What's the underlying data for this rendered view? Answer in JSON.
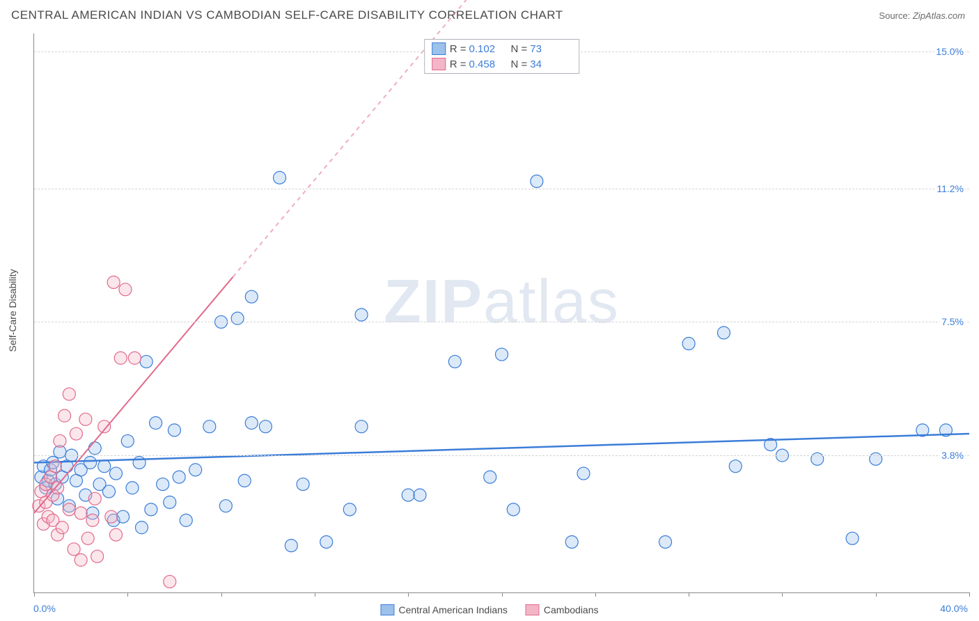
{
  "header": {
    "title": "CENTRAL AMERICAN INDIAN VS CAMBODIAN SELF-CARE DISABILITY CORRELATION CHART",
    "source_label": "Source:",
    "source_value": "ZipAtlas.com"
  },
  "watermark": {
    "part1": "ZIP",
    "part2": "atlas"
  },
  "chart": {
    "type": "scatter",
    "y_axis_title": "Self-Care Disability",
    "xlim": [
      0,
      40
    ],
    "ylim": [
      0,
      15.5
    ],
    "x_min_label": "0.0%",
    "x_max_label": "40.0%",
    "y_tick_values": [
      3.8,
      7.5,
      11.2,
      15.0
    ],
    "y_tick_labels": [
      "3.8%",
      "7.5%",
      "11.2%",
      "15.0%"
    ],
    "x_tick_values": [
      0,
      4,
      8,
      12,
      16,
      20,
      24,
      28,
      32,
      36,
      40
    ],
    "grid_color": "#d5d5d5",
    "background_color": "#ffffff",
    "marker_radius": 9,
    "marker_fill_opacity": 0.35,
    "marker_stroke_width": 1.2,
    "trend_line_width": 2,
    "series": [
      {
        "key": "cai",
        "label": "Central American Indians",
        "color_stroke": "#3b7dd8",
        "color_fill": "#9cc1ea",
        "R": "0.102",
        "N": "73",
        "trend": {
          "y_at_x0": 3.6,
          "y_at_xmax": 4.4,
          "dashed": false
        },
        "points": [
          [
            0.3,
            3.2
          ],
          [
            0.4,
            3.5
          ],
          [
            0.5,
            2.9
          ],
          [
            0.6,
            3.1
          ],
          [
            0.7,
            3.4
          ],
          [
            0.8,
            3.6
          ],
          [
            0.9,
            3.0
          ],
          [
            1.0,
            2.6
          ],
          [
            1.1,
            3.9
          ],
          [
            1.2,
            3.2
          ],
          [
            1.4,
            3.5
          ],
          [
            1.5,
            2.4
          ],
          [
            1.6,
            3.8
          ],
          [
            1.8,
            3.1
          ],
          [
            2.0,
            3.4
          ],
          [
            2.2,
            2.7
          ],
          [
            2.4,
            3.6
          ],
          [
            2.5,
            2.2
          ],
          [
            2.6,
            4.0
          ],
          [
            2.8,
            3.0
          ],
          [
            3.0,
            3.5
          ],
          [
            3.2,
            2.8
          ],
          [
            3.4,
            2.0
          ],
          [
            3.5,
            3.3
          ],
          [
            3.8,
            2.1
          ],
          [
            4.0,
            4.2
          ],
          [
            4.2,
            2.9
          ],
          [
            4.5,
            3.6
          ],
          [
            4.6,
            1.8
          ],
          [
            4.8,
            6.4
          ],
          [
            5.0,
            2.3
          ],
          [
            5.2,
            4.7
          ],
          [
            5.5,
            3.0
          ],
          [
            5.8,
            2.5
          ],
          [
            6.0,
            4.5
          ],
          [
            6.2,
            3.2
          ],
          [
            6.5,
            2.0
          ],
          [
            6.9,
            3.4
          ],
          [
            7.5,
            4.6
          ],
          [
            8.0,
            7.5
          ],
          [
            8.2,
            2.4
          ],
          [
            8.7,
            7.6
          ],
          [
            9.0,
            3.1
          ],
          [
            9.3,
            4.7
          ],
          [
            9.3,
            8.2
          ],
          [
            9.9,
            4.6
          ],
          [
            10.5,
            11.5
          ],
          [
            11.0,
            1.3
          ],
          [
            11.5,
            3.0
          ],
          [
            12.5,
            1.4
          ],
          [
            13.5,
            2.3
          ],
          [
            14.0,
            4.6
          ],
          [
            14.0,
            7.7
          ],
          [
            16.0,
            2.7
          ],
          [
            16.5,
            2.7
          ],
          [
            18.0,
            6.4
          ],
          [
            19.5,
            3.2
          ],
          [
            20.0,
            6.6
          ],
          [
            20.5,
            2.3
          ],
          [
            21.5,
            11.4
          ],
          [
            23.0,
            1.4
          ],
          [
            23.5,
            3.3
          ],
          [
            27.0,
            1.4
          ],
          [
            28.0,
            6.9
          ],
          [
            29.5,
            7.2
          ],
          [
            30.0,
            3.5
          ],
          [
            31.5,
            4.1
          ],
          [
            32.0,
            3.8
          ],
          [
            33.5,
            3.7
          ],
          [
            36.0,
            3.7
          ],
          [
            38.0,
            4.5
          ],
          [
            39.0,
            4.5
          ],
          [
            35.0,
            1.5
          ]
        ]
      },
      {
        "key": "cam",
        "label": "Cambodians",
        "color_stroke": "#e26a8b",
        "color_fill": "#f3b6c6",
        "R": "0.458",
        "N": "34",
        "trend": {
          "y_at_x0": 2.2,
          "y_at_xmax": 33.0,
          "dashed_after_x": 8.5
        },
        "points": [
          [
            0.2,
            2.4
          ],
          [
            0.3,
            2.8
          ],
          [
            0.4,
            1.9
          ],
          [
            0.5,
            2.5
          ],
          [
            0.5,
            3.0
          ],
          [
            0.6,
            2.1
          ],
          [
            0.7,
            3.2
          ],
          [
            0.8,
            2.0
          ],
          [
            0.8,
            2.7
          ],
          [
            0.9,
            3.5
          ],
          [
            1.0,
            1.6
          ],
          [
            1.0,
            2.9
          ],
          [
            1.1,
            4.2
          ],
          [
            1.2,
            1.8
          ],
          [
            1.3,
            4.9
          ],
          [
            1.5,
            2.3
          ],
          [
            1.5,
            5.5
          ],
          [
            1.7,
            1.2
          ],
          [
            1.8,
            4.4
          ],
          [
            2.0,
            0.9
          ],
          [
            2.0,
            2.2
          ],
          [
            2.2,
            4.8
          ],
          [
            2.3,
            1.5
          ],
          [
            2.5,
            2.0
          ],
          [
            2.7,
            1.0
          ],
          [
            3.0,
            4.6
          ],
          [
            3.3,
            2.1
          ],
          [
            3.4,
            8.6
          ],
          [
            3.5,
            1.6
          ],
          [
            3.7,
            6.5
          ],
          [
            3.9,
            8.4
          ],
          [
            4.3,
            6.5
          ],
          [
            5.8,
            0.3
          ],
          [
            2.6,
            2.6
          ]
        ]
      }
    ],
    "stats_box": {
      "r_label": "R =",
      "n_label": "N ="
    },
    "legend": {
      "items": [
        {
          "series_key": "cai"
        },
        {
          "series_key": "cam"
        }
      ]
    }
  }
}
